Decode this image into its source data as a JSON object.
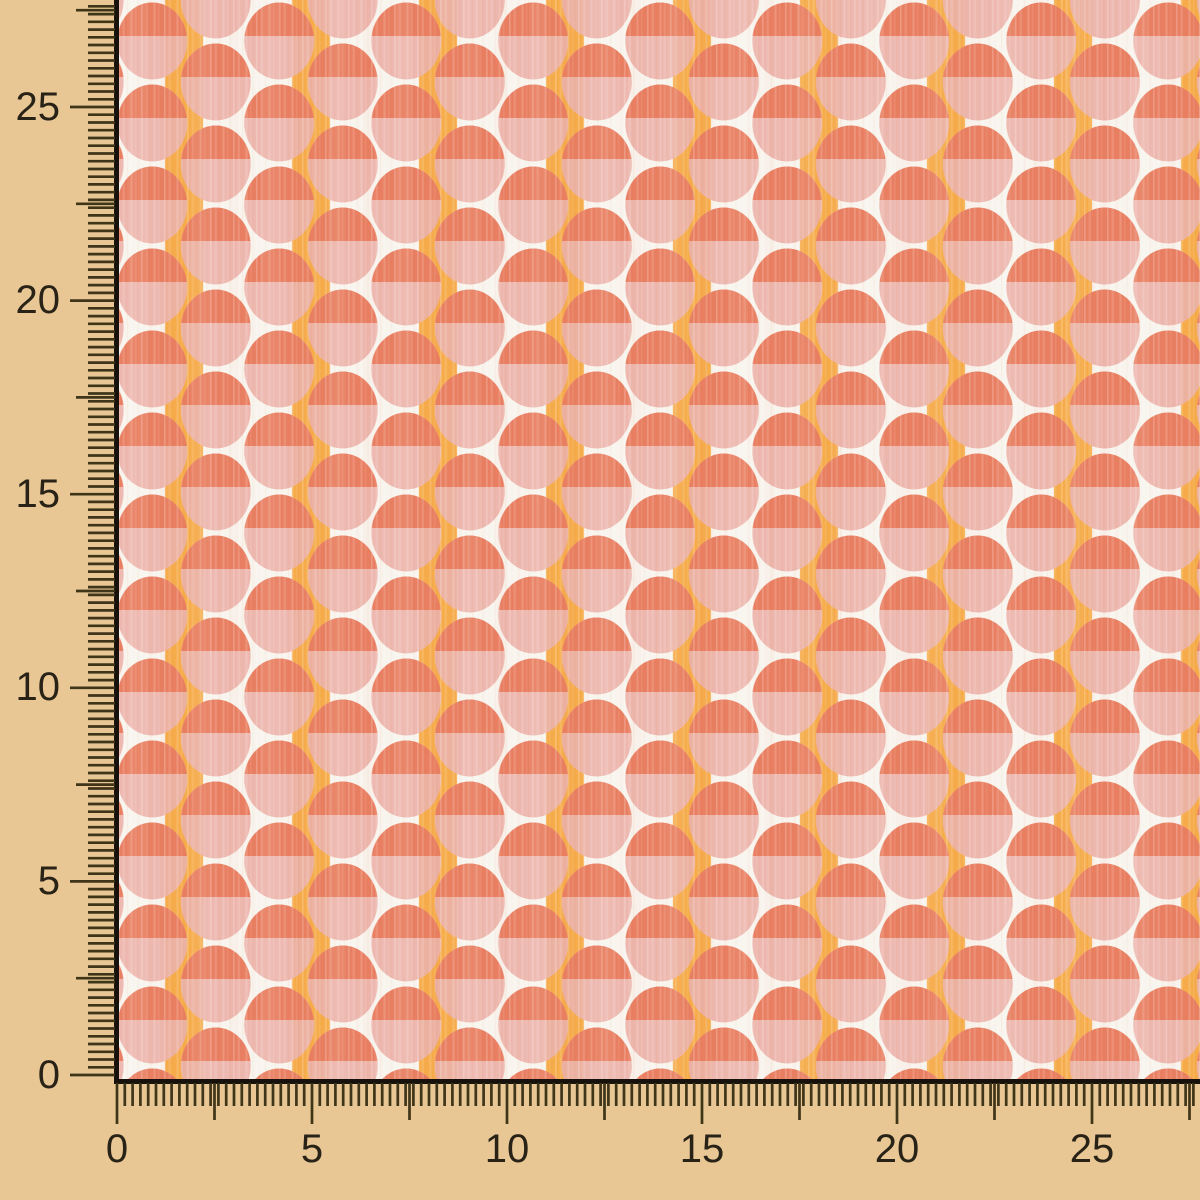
{
  "image": {
    "type": "product-photo",
    "subject": "fabric swatch measured by centimeter rulers"
  },
  "fabric": {
    "name": "coral overlapping-circles fabric",
    "pattern": "vertical half-drop columns of bi-color circles (coral top, pink bottom) over white ground with orange-yellow vertical stripes on alternating gaps",
    "colors": {
      "coral": "#e97c5e",
      "pink": "#ecb4aa",
      "ground": "#f8f4ed",
      "yellow": "#f6ac4a"
    }
  },
  "ruler": {
    "unit": "cm",
    "left_labels": [
      "25",
      "20",
      "15",
      "10",
      "5",
      "0"
    ],
    "bottom_labels": [
      "0",
      "5",
      "10",
      "15",
      "20",
      "25"
    ],
    "colors": {
      "background": "#e8c795",
      "tick": "#3f3519",
      "number": "#292217",
      "border": "#17130c"
    }
  }
}
